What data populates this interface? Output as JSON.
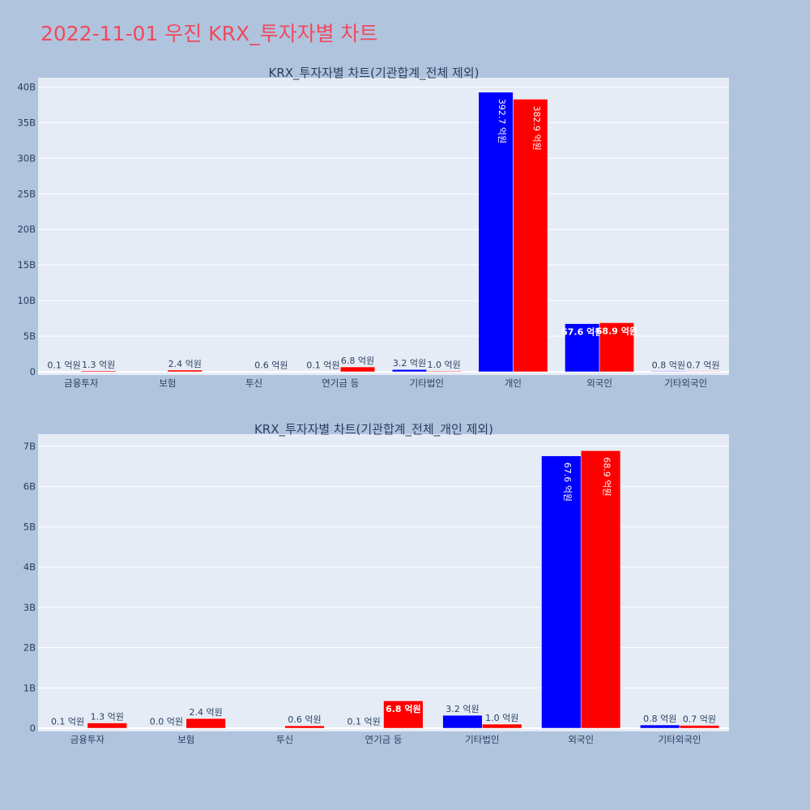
{
  "page_title": "2022-11-01 우진 KRX_투자자별 차트",
  "colors": {
    "buy": "#0000ff",
    "sell": "#ff0000",
    "plot_bg": "#e5ecf6",
    "page_bg": "#b0c4de",
    "title": "#ef4a5e"
  },
  "chart_data": [
    {
      "type": "bar",
      "title": "KRX_투자자별 차트(기관합계_전체 제외)",
      "categories": [
        "금융투자",
        "보험",
        "투신",
        "연기금 등",
        "기타법인",
        "개인",
        "외국인",
        "기타외국인"
      ],
      "series": [
        {
          "values": [
            0.01,
            0.0,
            0.0,
            0.01,
            0.32,
            39.27,
            6.76,
            0.08
          ]
        },
        {
          "values": [
            0.13,
            0.24,
            0.06,
            0.68,
            0.1,
            38.29,
            6.89,
            0.07
          ]
        }
      ],
      "labels": [
        [
          "0.1 억원",
          "",
          "",
          "0.1 억원",
          "3.2 억원",
          "392.7 억원",
          "67.6 억원",
          "0.8 억원"
        ],
        [
          "1.3 억원",
          "2.4 억원",
          "0.6 억원",
          "6.8 억원",
          "1.0 억원",
          "382.9 억원",
          "68.9 억원",
          "0.7 억원"
        ]
      ],
      "yticks": [
        "0",
        "5B",
        "10B",
        "15B",
        "20B",
        "25B",
        "30B",
        "35B",
        "40B"
      ],
      "ylim": [
        0,
        41.3
      ],
      "ytick_step": 5
    },
    {
      "type": "bar",
      "title": "KRX_투자자별 차트(기관합계_전체_개인 제외)",
      "categories": [
        "금융투자",
        "보험",
        "투신",
        "연기금 등",
        "기타법인",
        "외국인",
        "기타외국인"
      ],
      "series": [
        {
          "values": [
            0.01,
            0.0,
            0.0,
            0.01,
            0.32,
            6.76,
            0.08
          ]
        },
        {
          "values": [
            0.13,
            0.24,
            0.06,
            0.68,
            0.1,
            6.89,
            0.07
          ]
        }
      ],
      "labels": [
        [
          "0.1 억원",
          "0.0 억원",
          "",
          "0.1 억원",
          "3.2 억원",
          "67.6 억원",
          "0.8 억원"
        ],
        [
          "1.3 억원",
          "2.4 억원",
          "0.6 억원",
          "6.8 억원",
          "1.0 억원",
          "68.9 억원",
          "0.7 억원"
        ]
      ],
      "yticks": [
        "0",
        "1B",
        "2B",
        "3B",
        "4B",
        "5B",
        "6B",
        "7B"
      ],
      "ylim": [
        0,
        7.3
      ],
      "ytick_step": 1
    }
  ]
}
